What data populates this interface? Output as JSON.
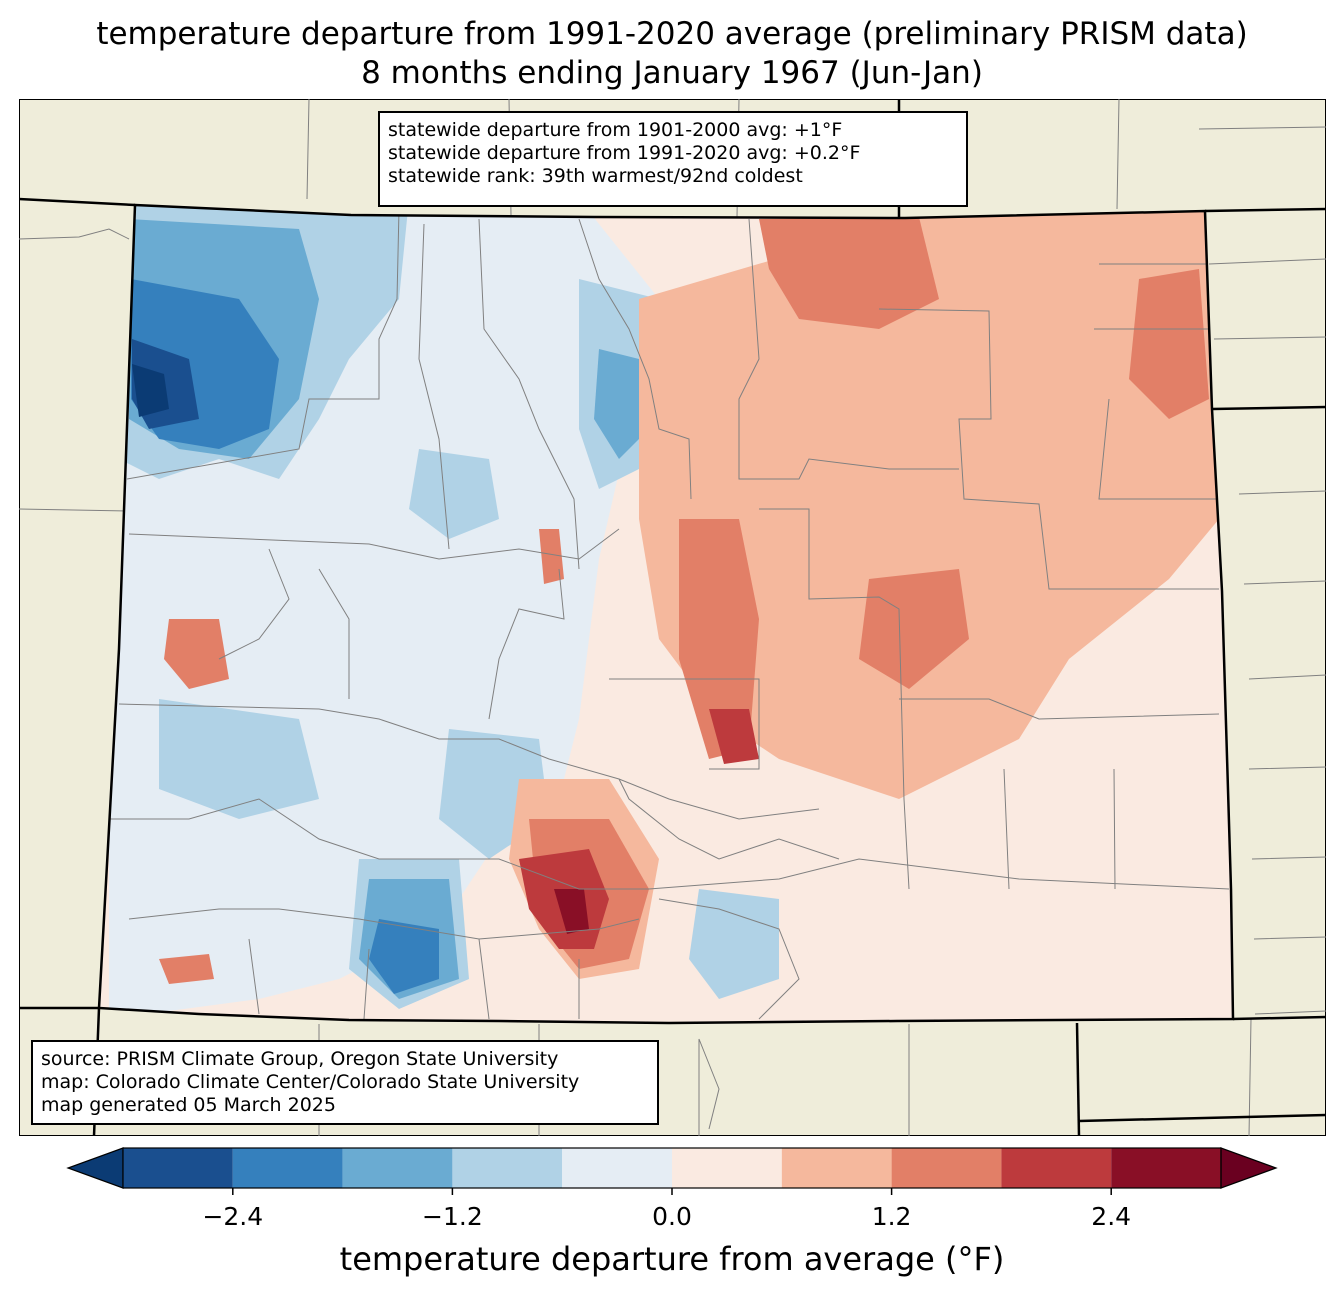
{
  "title": {
    "line1": "temperature departure from 1991-2020 average (preliminary PRISM data)",
    "line2": "8 months ending January 1967 (Jun-Jan)"
  },
  "stats": {
    "line1": "statewide departure from 1901-2000 avg: +1°F",
    "line2": "statewide departure from 1991-2020 avg: +0.2°F",
    "line3": "statewide rank: 39th warmest/92nd coldest"
  },
  "source": {
    "line1": "source: PRISM Climate Group, Oregon State University",
    "line2": "map: Colorado Climate Center/Colorado State University",
    "line3": "map generated 05 March 2025"
  },
  "colorbar": {
    "label": "temperature departure from average (°F)",
    "ticks": [
      "−2.4",
      "−1.2",
      "0.0",
      "1.2",
      "2.4"
    ],
    "tick_values": [
      -2.4,
      -1.2,
      0.0,
      1.2,
      2.4
    ],
    "levels": [
      -3.0,
      -2.4,
      -1.8,
      -1.2,
      -0.6,
      0.0,
      0.6,
      1.2,
      1.8,
      2.4,
      3.0
    ],
    "colors": [
      "#0b3b74",
      "#1a4f8f",
      "#3580bd",
      "#6aabd2",
      "#b0d2e6",
      "#e5edf4",
      "#faeae1",
      "#f5b89d",
      "#e27f67",
      "#bd3a3d",
      "#890f26",
      "#6a0020"
    ]
  },
  "map_colors": {
    "background": "#efedda",
    "state_border": "#000000",
    "county_border": "#808080"
  }
}
